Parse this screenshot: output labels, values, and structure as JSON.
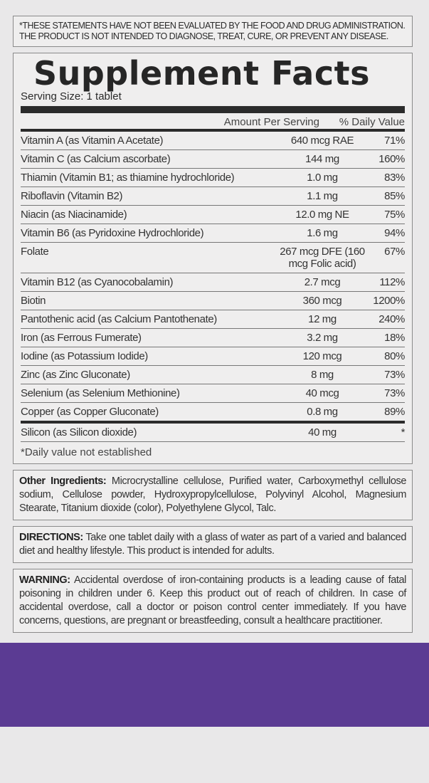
{
  "disclaimer": "*These statements have not been evaluated by the Food and Drug Administration. The product is not intended to diagnose, treat, cure, or prevent any disease.",
  "facts": {
    "title": "Supplement Facts",
    "serving_size": "Serving Size: 1 tablet",
    "col_amount": "Amount Per Serving",
    "col_dv": "% Daily Value",
    "rows": [
      {
        "name": "Vitamin A (as Vitamin A Acetate)",
        "amount": "640 mcg RAE",
        "dv": "71%"
      },
      {
        "name": "Vitamin C (as Calcium ascorbate)",
        "amount": "144 mg",
        "dv": "160%"
      },
      {
        "name": "Thiamin (Vitamin B1; as thiamine hydrochloride)",
        "amount": "1.0 mg",
        "dv": "83%"
      },
      {
        "name": "Riboflavin (Vitamin B2)",
        "amount": "1.1 mg",
        "dv": "85%"
      },
      {
        "name": "Niacin (as Niacinamide)",
        "amount": "12.0 mg NE",
        "dv": "75%"
      },
      {
        "name": "Vitamin B6 (as Pyridoxine Hydrochloride)",
        "amount": "1.6 mg",
        "dv": "94%"
      },
      {
        "name": "Folate",
        "amount": "267 mcg DFE (160 mcg Folic acid)",
        "dv": "67%"
      },
      {
        "name": "Vitamin B12 (as Cyanocobalamin)",
        "amount": "2.7 mcg",
        "dv": "112%"
      },
      {
        "name": "Biotin",
        "amount": "360 mcg",
        "dv": "1200%"
      },
      {
        "name": "Pantothenic acid (as Calcium Pantothenate)",
        "amount": "12 mg",
        "dv": "240%"
      },
      {
        "name": "Iron (as Ferrous Fumerate)",
        "amount": "3.2 mg",
        "dv": "18%"
      },
      {
        "name": "Iodine (as Potassium Iodide)",
        "amount": "120 mcg",
        "dv": "80%"
      },
      {
        "name": "Zinc (as Zinc Gluconate)",
        "amount": "8 mg",
        "dv": "73%"
      },
      {
        "name": "Selenium (as Selenium Methionine)",
        "amount": "40 mcg",
        "dv": "73%"
      },
      {
        "name": "Copper (as Copper Gluconate)",
        "amount": "0.8 mg",
        "dv": "89%"
      },
      {
        "name": "Silicon (as Silicon dioxide)",
        "amount": "40 mg",
        "dv": "*"
      }
    ],
    "footnote": "*Daily value not established"
  },
  "other": {
    "label": "Other Ingredients:",
    "text": " Microcrystalline cellulose, Purified water, Carboxymethyl cellulose sodium, Cellulose powder, Hydroxypropylcellulose, Polyvinyl Alcohol, Magnesium Stearate, Titanium dioxide (color), Polyethylene Glycol, Talc."
  },
  "directions": {
    "label": "DIRECTIONS:",
    "text": " Take one tablet daily with a glass of water as part of a varied and balanced diet and healthy lifestyle. This product is intended for adults."
  },
  "warning": {
    "label": "WARNING:",
    "text": " Accidental overdose of iron-containing products is a leading cause of fatal poisoning in children under 6. Keep this product out of reach of children. In case of accidental overdose, call a doctor or poison control center immediately. If you have concerns, questions, are pregnant or breastfeeding, consult a healthcare practitioner."
  },
  "colors": {
    "band": "#5b3b93",
    "text": "#2a2a2a",
    "background": "#e9e8e9"
  }
}
